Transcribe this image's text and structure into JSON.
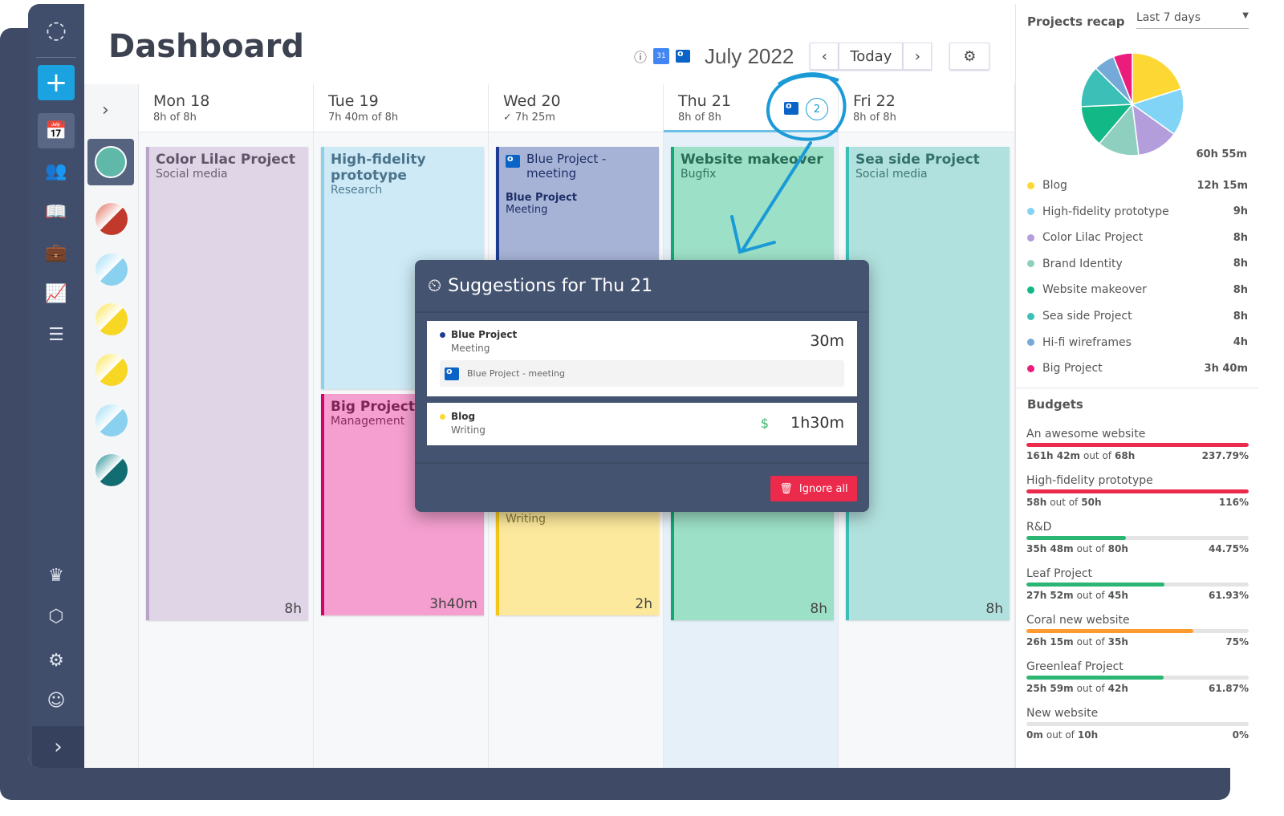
{
  "header": {
    "title": "Dashboard",
    "month": "July 2022",
    "today": "Today",
    "prev": "‹",
    "next": "›"
  },
  "sidebar": {
    "items": [
      "logo",
      "add",
      "timesheet",
      "team",
      "reports-book",
      "projects",
      "analytics",
      "tasks",
      "upgrade",
      "integrations",
      "settings",
      "profile"
    ],
    "expand": "›"
  },
  "calendar": {
    "expand": "›",
    "days": [
      {
        "name": "Mon 18",
        "hours": "8h of 8h"
      },
      {
        "name": "Tue 19",
        "hours": "7h 40m of 8h"
      },
      {
        "name": "Wed 20",
        "hours": "✓ 7h 25m"
      },
      {
        "name": "Thu 21",
        "hours": "8h of 8h",
        "suggestions": "2"
      },
      {
        "name": "Fri 22",
        "hours": "8h of 8h"
      }
    ],
    "cards": {
      "mon": {
        "title": "Color Lilac Project",
        "sub": "Social media",
        "dur": "8h"
      },
      "tue1": {
        "title": "High-fidelity prototype",
        "sub": "Research"
      },
      "tue2": {
        "title": "Big Project",
        "sub": "Management",
        "dur": "3h40m"
      },
      "wed1": {
        "title": "Blue Project - meeting",
        "project": "Blue Project",
        "sub": "Meeting"
      },
      "wed2": {
        "sub": "Writing",
        "dur": "2h"
      },
      "thu": {
        "title": "Website makeover",
        "sub": "Bugfix",
        "dur": "8h"
      },
      "fri": {
        "title": "Sea side Project",
        "sub": "Social media",
        "dur": "8h"
      }
    }
  },
  "popup": {
    "title": "Suggestions for Thu 21",
    "items": [
      {
        "project": "Blue Project",
        "task": "Meeting",
        "duration": "30m",
        "event": "Blue Project - meeting",
        "color": "#1f3d94"
      },
      {
        "project": "Blog",
        "task": "Writing",
        "duration": "1h30m",
        "color": "#fdd835"
      }
    ],
    "ignore": "Ignore all"
  },
  "recap": {
    "title": "Projects recap",
    "period": "Last 7 days",
    "total": "60h 55m",
    "items": [
      {
        "name": "Blog",
        "value": "12h 15m",
        "hours": 12.25,
        "color": "#fdd835"
      },
      {
        "name": "High-fidelity prototype",
        "value": "9h",
        "hours": 9,
        "color": "#81d4f5"
      },
      {
        "name": "Color Lilac Project",
        "value": "8h",
        "hours": 8,
        "color": "#b39ddb"
      },
      {
        "name": "Brand Identity",
        "value": "8h",
        "hours": 8,
        "color": "#8fcfbf"
      },
      {
        "name": "Website makeover",
        "value": "8h",
        "hours": 8,
        "color": "#12b886"
      },
      {
        "name": "Sea side Project",
        "value": "8h",
        "hours": 8,
        "color": "#3bbfb7"
      },
      {
        "name": "Hi-fi wireframes",
        "value": "4h",
        "hours": 4,
        "color": "#74a9d8"
      },
      {
        "name": "Big Project",
        "value": "3h 40m",
        "hours": 3.67,
        "color": "#ec1c7c"
      }
    ]
  },
  "budgets": {
    "title": "Budgets",
    "out_of": "out of",
    "items": [
      {
        "name": "An awesome website",
        "spent": "161h 42m",
        "total": "68h",
        "pct": "237.79%",
        "fill": 1,
        "color": "#ec2a4b"
      },
      {
        "name": "High-fidelity prototype",
        "spent": "58h",
        "total": "50h",
        "pct": "116%",
        "fill": 1,
        "color": "#ec2a4b"
      },
      {
        "name": "R&D",
        "spent": "35h 48m",
        "total": "80h",
        "pct": "44.75%",
        "fill": 0.4475,
        "color": "#2bb673"
      },
      {
        "name": "Leaf Project",
        "spent": "27h 52m",
        "total": "45h",
        "pct": "61.93%",
        "fill": 0.6193,
        "color": "#2bb673"
      },
      {
        "name": "Coral new website",
        "spent": "26h 15m",
        "total": "35h",
        "pct": "75%",
        "fill": 0.75,
        "color": "#ff9a2e"
      },
      {
        "name": "Greenleaf Project",
        "spent": "25h 59m",
        "total": "42h",
        "pct": "61.87%",
        "fill": 0.6187,
        "color": "#2bb673"
      },
      {
        "name": "New website",
        "spent": "0m",
        "total": "10h",
        "pct": "0%",
        "fill": 0,
        "color": "#2bb673"
      }
    ]
  }
}
